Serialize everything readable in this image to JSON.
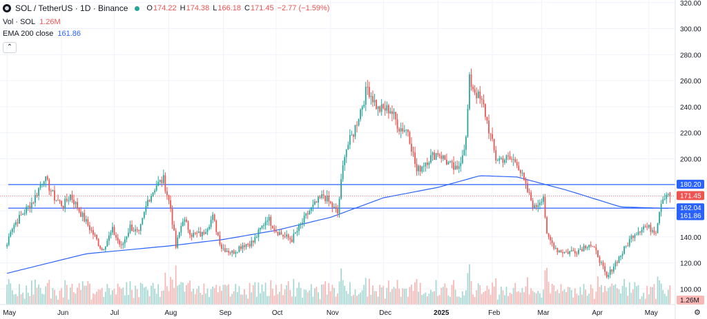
{
  "header": {
    "symbol": "SOL / TetherUS · 1D · Binance",
    "o_label": "O",
    "o": "174.22",
    "h_label": "H",
    "h": "174.38",
    "l_label": "L",
    "l": "166.18",
    "c_label": "C",
    "c": "171.45",
    "change": "−2.77 (−1.59%)"
  },
  "indicators": {
    "vol_label": "Vol · SOL",
    "vol_value": "1.26M",
    "ema_label": "EMA 200 close",
    "ema_value": "161.86"
  },
  "colors": {
    "up": "#26a69a",
    "down": "#ef5350",
    "ema": "#2962ff",
    "level": "#2962ff",
    "vol_up": "#a7d8d3",
    "vol_down": "#f7b8b6"
  },
  "price_axis": {
    "ticks": [
      "320.00",
      "300.00",
      "280.00",
      "260.00",
      "240.00",
      "220.00",
      "200.00",
      "180.00",
      "160.00",
      "140.00",
      "120.00",
      "100.00"
    ],
    "tick_values": [
      320,
      300,
      280,
      260,
      240,
      220,
      200,
      180,
      160,
      140,
      120,
      100
    ]
  },
  "time_axis": [
    "May",
    "Jun",
    "Jul",
    "Aug",
    "Sep",
    "Oct",
    "Nov",
    "Dec",
    "2025",
    "Feb",
    "Mar",
    "Apr",
    "May"
  ],
  "price_labels": [
    {
      "value": 180.2,
      "text": "180.20",
      "color": "#2962ff"
    },
    {
      "value": 171.45,
      "text": "171.45",
      "color": "#ef5350"
    },
    {
      "value": 162.04,
      "text": "162.04",
      "color": "#2962ff"
    },
    {
      "value": 161.86,
      "text": "161.86",
      "color": "#2962ff"
    }
  ],
  "volume_label": "1.26M",
  "chart_data": {
    "type": "candlestick",
    "title": "SOL / TetherUS · 1D · Binance",
    "ylim": [
      88,
      322
    ],
    "horizontal_levels": [
      180.2,
      162.04
    ],
    "last_close": 171.45,
    "price_anchors": [
      [
        "2024-05-01",
        134
      ],
      [
        "2024-05-03",
        146
      ],
      [
        "2024-05-10",
        158
      ],
      [
        "2024-05-16",
        168
      ],
      [
        "2024-05-22",
        186
      ],
      [
        "2024-05-28",
        170
      ],
      [
        "2024-06-02",
        164
      ],
      [
        "2024-06-06",
        172
      ],
      [
        "2024-06-12",
        158
      ],
      [
        "2024-06-20",
        140
      ],
      [
        "2024-06-24",
        130
      ],
      [
        "2024-06-30",
        145
      ],
      [
        "2024-07-05",
        132
      ],
      [
        "2024-07-10",
        148
      ],
      [
        "2024-07-15",
        142
      ],
      [
        "2024-07-20",
        168
      ],
      [
        "2024-07-25",
        180
      ],
      [
        "2024-07-29",
        184
      ],
      [
        "2024-08-02",
        162
      ],
      [
        "2024-08-05",
        132
      ],
      [
        "2024-08-09",
        154
      ],
      [
        "2024-08-14",
        142
      ],
      [
        "2024-08-20",
        142
      ],
      [
        "2024-08-26",
        155
      ],
      [
        "2024-08-31",
        132
      ],
      [
        "2024-09-06",
        128
      ],
      [
        "2024-09-12",
        134
      ],
      [
        "2024-09-18",
        136
      ],
      [
        "2024-09-26",
        155
      ],
      [
        "2024-10-01",
        145
      ],
      [
        "2024-10-06",
        140
      ],
      [
        "2024-10-10",
        138
      ],
      [
        "2024-10-20",
        160
      ],
      [
        "2024-10-28",
        172
      ],
      [
        "2024-11-01",
        165
      ],
      [
        "2024-11-05",
        158
      ],
      [
        "2024-11-09",
        205
      ],
      [
        "2024-11-14",
        220
      ],
      [
        "2024-11-22",
        255
      ],
      [
        "2024-11-28",
        238
      ],
      [
        "2024-12-05",
        238
      ],
      [
        "2024-12-10",
        224
      ],
      [
        "2024-12-15",
        222
      ],
      [
        "2024-12-20",
        190
      ],
      [
        "2024-12-25",
        198
      ],
      [
        "2025-01-01",
        205
      ],
      [
        "2025-01-08",
        195
      ],
      [
        "2025-01-12",
        190
      ],
      [
        "2025-01-17",
        215
      ],
      [
        "2025-01-19",
        260
      ],
      [
        "2025-01-23",
        250
      ],
      [
        "2025-01-27",
        240
      ],
      [
        "2025-02-03",
        200
      ],
      [
        "2025-02-10",
        200
      ],
      [
        "2025-02-15",
        198
      ],
      [
        "2025-02-20",
        178
      ],
      [
        "2025-02-25",
        162
      ],
      [
        "2025-03-02",
        172
      ],
      [
        "2025-03-04",
        140
      ],
      [
        "2025-03-10",
        130
      ],
      [
        "2025-03-15",
        128
      ],
      [
        "2025-03-22",
        130
      ],
      [
        "2025-03-28",
        135
      ],
      [
        "2025-04-02",
        126
      ],
      [
        "2025-04-07",
        108
      ],
      [
        "2025-04-11",
        118
      ],
      [
        "2025-04-16",
        128
      ],
      [
        "2025-04-22",
        142
      ],
      [
        "2025-04-28",
        148
      ],
      [
        "2025-05-05",
        145
      ],
      [
        "2025-05-08",
        168
      ],
      [
        "2025-05-10",
        172
      ],
      [
        "2025-05-12",
        174
      ],
      [
        "2025-05-13",
        171.45
      ]
    ],
    "ema_200_anchors": [
      [
        "2024-05-01",
        112
      ],
      [
        "2024-06-15",
        127
      ],
      [
        "2024-08-01",
        133
      ],
      [
        "2024-09-01",
        138
      ],
      [
        "2024-10-01",
        145
      ],
      [
        "2024-11-01",
        155
      ],
      [
        "2024-12-01",
        170
      ],
      [
        "2025-01-01",
        178
      ],
      [
        "2025-01-25",
        187
      ],
      [
        "2025-02-15",
        186
      ],
      [
        "2025-03-15",
        176
      ],
      [
        "2025-04-15",
        163
      ],
      [
        "2025-05-13",
        161.86
      ]
    ],
    "last_volume": "1.26M"
  }
}
